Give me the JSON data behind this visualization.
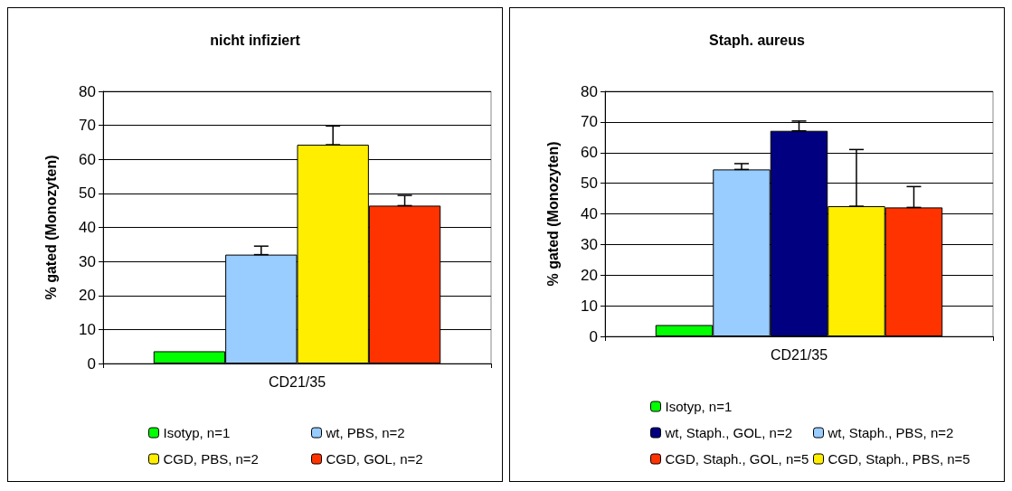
{
  "chart_data": [
    {
      "type": "bar",
      "title": "nicht infiziert",
      "ylabel": "% gated (Monozyten)",
      "categories": [
        "CD21/35"
      ],
      "ylim": [
        0,
        80
      ],
      "yticks": [
        0,
        10,
        20,
        30,
        40,
        50,
        60,
        70,
        80
      ],
      "grid": "y",
      "legend": "bottom",
      "series": [
        {
          "name": "Isotyp, n=1",
          "color": "#00ff00",
          "values": [
            3.6
          ],
          "errors": [
            null
          ]
        },
        {
          "name": "wt, PBS, n=2",
          "color": "#99ccff",
          "values": [
            32.0
          ],
          "errors": [
            [
              32.0,
              34.5
            ]
          ]
        },
        {
          "name": "CGD, PBS, n=2",
          "color": "#ffee00",
          "values": [
            64.3
          ],
          "errors": [
            [
              64.3,
              69.8
            ]
          ]
        },
        {
          "name": "CGD, GOL, n=2",
          "color": "#ff3300",
          "values": [
            46.4
          ],
          "errors": [
            [
              46.4,
              49.4
            ]
          ]
        }
      ]
    },
    {
      "type": "bar",
      "title": "Staph. aureus",
      "ylabel": "% gated (Monozyten)",
      "categories": [
        "CD21/35"
      ],
      "ylim": [
        0,
        80
      ],
      "yticks": [
        0,
        10,
        20,
        30,
        40,
        50,
        60,
        70,
        80
      ],
      "grid": "y",
      "legend": "bottom",
      "series": [
        {
          "name": "Isotyp, n=1",
          "color": "#00ff00",
          "values": [
            3.7
          ],
          "errors": [
            null
          ]
        },
        {
          "name": "wt, Staph., PBS, n=2",
          "color": "#99ccff",
          "values": [
            54.5
          ],
          "errors": [
            [
              54.5,
              56.4
            ]
          ]
        },
        {
          "name": "wt, Staph., GOL, n=2",
          "color": "#000080",
          "values": [
            67.1
          ],
          "errors": [
            [
              67.1,
              70.3
            ]
          ]
        },
        {
          "name": "CGD, Staph., PBS, n=5",
          "color": "#ffee00",
          "values": [
            42.5
          ],
          "errors": [
            [
              42.5,
              61.0
            ]
          ]
        },
        {
          "name": "CGD, Staph., GOL, n=5",
          "color": "#ff3300",
          "values": [
            42.1
          ],
          "errors": [
            [
              42.1,
              48.9
            ]
          ]
        }
      ]
    }
  ]
}
